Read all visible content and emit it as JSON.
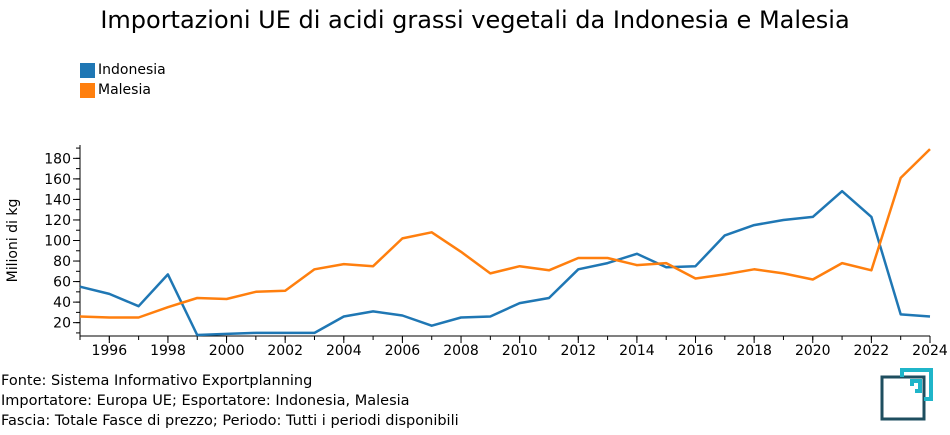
{
  "chart_data": {
    "type": "line",
    "title": "Importazioni UE di acidi grassi vegetali da Indonesia e Malesia",
    "ylabel": "Milioni di kg",
    "xlabel": "",
    "xlim": [
      1995,
      2024
    ],
    "ylim": [
      7,
      193
    ],
    "x_ticks": [
      "1996",
      "1998",
      "2000",
      "2002",
      "2004",
      "2006",
      "2008",
      "2010",
      "2012",
      "2014",
      "2016",
      "2018",
      "2020",
      "2022",
      "2024"
    ],
    "y_ticks": [
      "20",
      "40",
      "60",
      "80",
      "100",
      "120",
      "140",
      "160",
      "180"
    ],
    "x": [
      1995,
      1996,
      1997,
      1998,
      1999,
      2000,
      2001,
      2002,
      2003,
      2004,
      2005,
      2006,
      2007,
      2008,
      2009,
      2010,
      2011,
      2012,
      2013,
      2014,
      2015,
      2016,
      2017,
      2018,
      2019,
      2020,
      2021,
      2022,
      2023,
      2024
    ],
    "series": [
      {
        "name": "Indonesia",
        "color": "#1f77b4",
        "values": [
          55,
          48,
          36,
          67,
          8,
          9,
          10,
          10,
          10,
          26,
          31,
          27,
          17,
          25,
          26,
          39,
          44,
          72,
          78,
          87,
          74,
          75,
          105,
          115,
          120,
          123,
          148,
          123,
          28,
          26
        ]
      },
      {
        "name": "Malesia",
        "color": "#ff7f0e",
        "values": [
          26,
          25,
          25,
          35,
          44,
          43,
          50,
          51,
          72,
          77,
          75,
          102,
          108,
          89,
          68,
          75,
          71,
          83,
          83,
          76,
          78,
          63,
          67,
          72,
          68,
          62,
          78,
          71,
          161,
          189
        ]
      }
    ],
    "legend_position": "top-left",
    "grid": false
  },
  "footer": {
    "source": "Fonte: Sistema Informativo Exportplanning",
    "importer": "Importatore: Europa UE; Esportatore: Indonesia, Malesia",
    "band": "Fascia: Totale Fasce di prezzo; Periodo: Tutti i periodi disponibili"
  },
  "logo_icon": "exportplanning-logo-icon"
}
